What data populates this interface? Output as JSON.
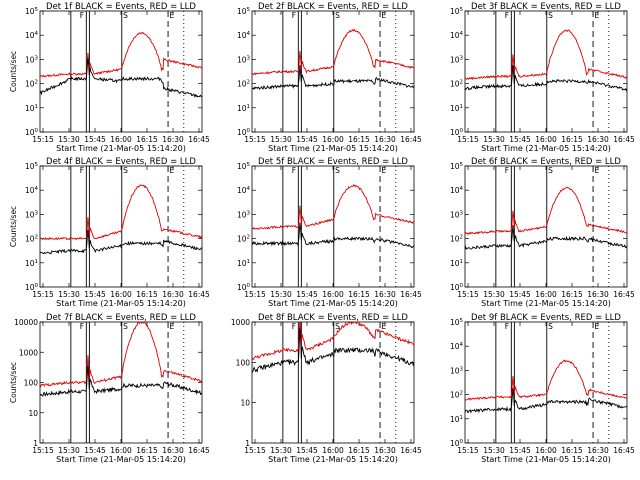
{
  "chart_data": [
    {
      "type": "line",
      "title": "Det 1f BLACK = Events, RED = LLD",
      "xlabel": "Start Time (21-Mar-05 15:14:20)",
      "ylabel": "Counts/sec",
      "yscale": "log",
      "ylim_exp": [
        0,
        5
      ],
      "ytick_labels": [
        "10^0",
        "10^1",
        "10^2",
        "10^3",
        "10^4",
        "10^5"
      ],
      "xtick_labels": [
        "15:15",
        "15:30",
        "15:45",
        "16:00",
        "16:15",
        "16:30",
        "16:45"
      ],
      "series": [
        {
          "name": "Events",
          "color": "#000000",
          "levels": [
            1.6,
            2.2,
            2.1,
            1.8
          ]
        },
        {
          "name": "LLD",
          "color": "#e00000",
          "levels": [
            2.3,
            2.4,
            2.6,
            3.0
          ]
        }
      ],
      "peak": 4.1,
      "markers": [
        "F",
        "S",
        "E"
      ],
      "grid": false
    },
    {
      "type": "line",
      "title": "Det 2f BLACK = Events, RED = LLD",
      "xlabel": "Start Time (21-Mar-05 15:14:20)",
      "ylabel": "",
      "yscale": "log",
      "ylim_exp": [
        0,
        5
      ],
      "ytick_labels": [
        "10^0",
        "10^1",
        "10^2",
        "10^3",
        "10^4",
        "10^5"
      ],
      "xtick_labels": [
        "15:15",
        "15:30",
        "15:45",
        "16:00",
        "16:15",
        "16:30",
        "16:45"
      ],
      "series": [
        {
          "name": "Events",
          "color": "#000000",
          "levels": [
            1.8,
            1.9,
            2.0,
            2.2
          ]
        },
        {
          "name": "LLD",
          "color": "#e00000",
          "levels": [
            2.4,
            2.5,
            2.7,
            3.0
          ]
        }
      ],
      "peak": 4.2,
      "markers": [
        "F",
        "S",
        "E"
      ],
      "grid": false
    },
    {
      "type": "line",
      "title": "Det 3f BLACK = Events, RED = LLD",
      "xlabel": "Start Time (21-Mar-05 15:14:20)",
      "ylabel": "",
      "yscale": "log",
      "ylim_exp": [
        0,
        5
      ],
      "ytick_labels": [
        "10^0",
        "10^1",
        "10^2",
        "10^3",
        "10^4",
        "10^5"
      ],
      "xtick_labels": [
        "15:15",
        "15:30",
        "15:45",
        "16:00",
        "16:15",
        "16:30",
        "16:45"
      ],
      "series": [
        {
          "name": "Events",
          "color": "#000000",
          "levels": [
            1.8,
            1.9,
            2.0,
            2.1
          ]
        },
        {
          "name": "LLD",
          "color": "#e00000",
          "levels": [
            2.2,
            2.3,
            2.4,
            2.6
          ]
        }
      ],
      "peak": 4.2,
      "markers": [
        "F",
        "S",
        "E"
      ],
      "grid": false
    },
    {
      "type": "line",
      "title": "Det 4f BLACK = Events, RED = LLD",
      "xlabel": "Start Time (21-Mar-05 15:14:20)",
      "ylabel": "Counts/sec",
      "yscale": "log",
      "ylim_exp": [
        0,
        5
      ],
      "ytick_labels": [
        "10^0",
        "10^1",
        "10^2",
        "10^3",
        "10^4",
        "10^5"
      ],
      "xtick_labels": [
        "15:15",
        "15:30",
        "15:45",
        "16:00",
        "16:15",
        "16:30",
        "16:45"
      ],
      "series": [
        {
          "name": "Events",
          "color": "#000000",
          "levels": [
            1.4,
            1.5,
            1.7,
            1.9
          ]
        },
        {
          "name": "LLD",
          "color": "#e00000",
          "levels": [
            2.0,
            2.0,
            2.3,
            2.4
          ]
        }
      ],
      "peak": 4.2,
      "markers": [
        "F",
        "S",
        "E"
      ],
      "grid": false
    },
    {
      "type": "line",
      "title": "Det 5f BLACK = Events, RED = LLD",
      "xlabel": "Start Time (21-Mar-05 15:14:20)",
      "ylabel": "",
      "yscale": "log",
      "ylim_exp": [
        0,
        5
      ],
      "ytick_labels": [
        "10^0",
        "10^1",
        "10^2",
        "10^3",
        "10^4",
        "10^5"
      ],
      "xtick_labels": [
        "15:15",
        "15:30",
        "15:45",
        "16:00",
        "16:15",
        "16:30",
        "16:45"
      ],
      "series": [
        {
          "name": "Events",
          "color": "#000000",
          "levels": [
            1.8,
            1.8,
            1.9,
            2.0
          ]
        },
        {
          "name": "LLD",
          "color": "#e00000",
          "levels": [
            2.4,
            2.5,
            2.8,
            3.0
          ]
        }
      ],
      "peak": 4.2,
      "markers": [
        "F",
        "S",
        "E"
      ],
      "grid": false
    },
    {
      "type": "line",
      "title": "Det 6f BLACK = Events, RED = LLD",
      "xlabel": "Start Time (21-Mar-05 15:14:20)",
      "ylabel": "",
      "yscale": "log",
      "ylim_exp": [
        0,
        5
      ],
      "ytick_labels": [
        "10^0",
        "10^1",
        "10^2",
        "10^3",
        "10^4",
        "10^5"
      ],
      "xtick_labels": [
        "15:15",
        "15:30",
        "15:45",
        "16:00",
        "16:15",
        "16:30",
        "16:45"
      ],
      "series": [
        {
          "name": "Events",
          "color": "#000000",
          "levels": [
            1.6,
            1.7,
            1.9,
            2.0
          ]
        },
        {
          "name": "LLD",
          "color": "#e00000",
          "levels": [
            2.2,
            2.3,
            2.5,
            2.6
          ]
        }
      ],
      "peak": 4.1,
      "markers": [
        "F",
        "S",
        "E"
      ],
      "grid": false
    },
    {
      "type": "line",
      "title": "Det 7f BLACK = Events, RED = LLD",
      "xlabel": "Start Time (21-Mar-05 15:14:20)",
      "ylabel": "Counts/sec",
      "yscale": "log",
      "ylim_exp": [
        0,
        4
      ],
      "ytick_labels": [
        "1",
        "10",
        "100",
        "1000",
        "10000"
      ],
      "xtick_labels": [
        "15:15",
        "15:30",
        "15:45",
        "16:00",
        "16:15",
        "16:30",
        "16:45"
      ],
      "series": [
        {
          "name": "Events",
          "color": "#000000",
          "levels": [
            1.6,
            1.7,
            1.8,
            2.0
          ]
        },
        {
          "name": "LLD",
          "color": "#e00000",
          "levels": [
            1.9,
            2.0,
            2.2,
            2.4
          ]
        }
      ],
      "peak": 4.0,
      "markers": [
        "F",
        "S",
        "E"
      ],
      "grid": false
    },
    {
      "type": "line",
      "title": "Det 8f BLACK = Events, RED = LLD",
      "xlabel": "Start Time (21-Mar-05 15:14:20)",
      "ylabel": "",
      "yscale": "log",
      "ylim_exp": [
        0,
        3
      ],
      "ytick_labels": [
        "1",
        "10",
        "100",
        "1000"
      ],
      "xtick_labels": [
        "15:15",
        "15:30",
        "15:45",
        "16:00",
        "16:15",
        "16:30",
        "16:45"
      ],
      "series": [
        {
          "name": "Events",
          "color": "#000000",
          "levels": [
            1.8,
            2.0,
            2.2,
            2.3
          ]
        },
        {
          "name": "LLD",
          "color": "#e00000",
          "levels": [
            2.1,
            2.3,
            2.6,
            2.8
          ]
        }
      ],
      "peak": 3.0,
      "markers": [
        "F",
        "S",
        "E"
      ],
      "grid": false
    },
    {
      "type": "line",
      "title": "Det 9f BLACK = Events, RED = LLD",
      "xlabel": "Start Time (21-Mar-05 15:14:20)",
      "ylabel": "",
      "yscale": "log",
      "ylim_exp": [
        0,
        5
      ],
      "ytick_labels": [
        "10^0",
        "10^1",
        "10^2",
        "10^3",
        "10^4",
        "10^5"
      ],
      "xtick_labels": [
        "15:15",
        "15:30",
        "15:45",
        "16:00",
        "16:15",
        "16:30",
        "16:45"
      ],
      "series": [
        {
          "name": "Events",
          "color": "#000000",
          "levels": [
            1.3,
            1.4,
            1.6,
            1.8
          ]
        },
        {
          "name": "LLD",
          "color": "#e00000",
          "levels": [
            1.8,
            1.9,
            2.0,
            2.2
          ]
        }
      ],
      "peak": 3.4,
      "markers": [
        "F",
        "S",
        "E"
      ],
      "grid": false
    }
  ]
}
